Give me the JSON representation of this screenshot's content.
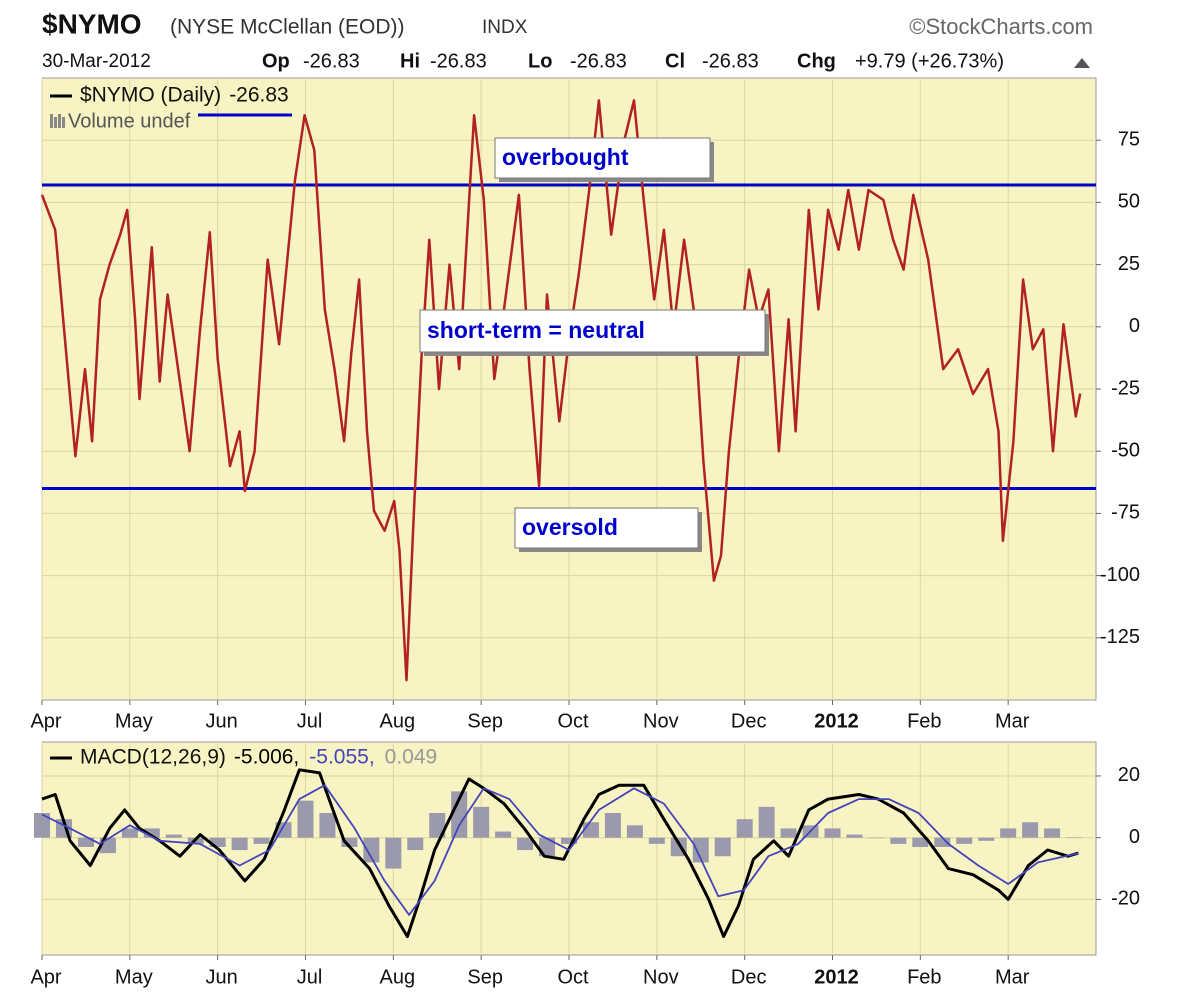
{
  "header": {
    "symbol": "$NYMO",
    "name": "(NYSE McClellan (EOD))",
    "exchange": "INDX",
    "source": "©StockCharts.com",
    "date": "30-Mar-2012",
    "open_label": "Op",
    "open": -26.83,
    "high_label": "Hi",
    "high": -26.83,
    "low_label": "Lo",
    "low": -26.83,
    "close_label": "Cl",
    "close": -26.83,
    "change_label": "Chg",
    "change": "+9.79 (+26.73%)"
  },
  "chart_data": [
    {
      "type": "line",
      "volume_legend": "Volume undef",
      "annotations": [
        "overbought",
        "short-term = neutral",
        "oversold"
      ],
      "hlines": [
        57,
        -65
      ],
      "hline_color": "#0000cc",
      "xlim": [
        0,
        12
      ],
      "ylim": [
        -150,
        100
      ],
      "grid": true,
      "xticks": [
        {
          "value": 0,
          "label": "Apr"
        },
        {
          "value": 1,
          "label": "May"
        },
        {
          "value": 2,
          "label": "Jun"
        },
        {
          "value": 3,
          "label": "Jul"
        },
        {
          "value": 4,
          "label": "Aug"
        },
        {
          "value": 5,
          "label": "Sep"
        },
        {
          "value": 6,
          "label": "Oct"
        },
        {
          "value": 7,
          "label": "Nov"
        },
        {
          "value": 8,
          "label": "Dec"
        },
        {
          "value": 9,
          "label": "2012"
        },
        {
          "value": 10,
          "label": "Feb"
        },
        {
          "value": 11,
          "label": "Mar"
        }
      ],
      "yticks": [
        75,
        50,
        25,
        0,
        -25,
        -50,
        -75,
        -100,
        -125
      ],
      "series": [
        {
          "name": "$NYMO (Daily)",
          "color": "#b22222",
          "x": [
            0,
            0.15,
            0.38,
            0.49,
            0.57,
            0.66,
            0.77,
            0.89,
            0.97,
            1.06,
            1.11,
            1.25,
            1.34,
            1.43,
            1.51,
            1.68,
            1.8,
            1.91,
            2,
            2.14,
            2.25,
            2.31,
            2.42,
            2.57,
            2.7,
            2.88,
            2.99,
            3.1,
            3.22,
            3.33,
            3.44,
            3.52,
            3.61,
            3.7,
            3.78,
            3.9,
            4.01,
            4.07,
            4.15,
            4.24,
            4.32,
            4.41,
            4.52,
            4.64,
            4.75,
            4.92,
            5.03,
            5.15,
            5.26,
            5.43,
            5.55,
            5.66,
            5.75,
            5.89,
            6,
            6.11,
            6.23,
            6.34,
            6.48,
            6.63,
            6.74,
            6.85,
            6.97,
            7.08,
            7.19,
            7.31,
            7.42,
            7.53,
            7.65,
            7.73,
            7.82,
            7.93,
            8.05,
            8.16,
            8.27,
            8.39,
            8.5,
            8.58,
            8.73,
            8.84,
            8.95,
            9.07,
            9.18,
            9.3,
            9.41,
            9.58,
            9.69,
            9.81,
            9.92,
            10.09,
            10.26,
            10.43,
            10.6,
            10.77,
            10.89,
            10.94,
            11.06,
            11.17,
            11.28,
            11.4,
            11.51,
            11.63,
            11.77,
            11.82
          ],
          "values": [
            53,
            39,
            -52,
            -17,
            -46,
            11,
            25,
            37,
            47,
            3,
            -29,
            32,
            -22,
            13,
            -7,
            -50,
            -1,
            38,
            -13,
            -56,
            -42,
            -66,
            -50,
            27,
            -7,
            59,
            85,
            71,
            7,
            -17,
            -46,
            -11,
            19,
            -42,
            -74,
            -82,
            -70,
            -90,
            -142,
            -70,
            -13,
            35,
            -25,
            25,
            -17,
            85,
            51,
            -21,
            7,
            53,
            -17,
            -64,
            13,
            -38,
            -5,
            21,
            55,
            91,
            37,
            75,
            91,
            51,
            11,
            39,
            -1,
            35,
            7,
            -54,
            -102,
            -92,
            -50,
            -13,
            23,
            3,
            15,
            -50,
            3,
            -42,
            47,
            7,
            47,
            31,
            55,
            31,
            55,
            51,
            35,
            23,
            53,
            27,
            -17,
            -9,
            -27,
            -17,
            -42,
            -86,
            -46,
            19,
            -9,
            -1,
            -50,
            1,
            -36,
            -26.83
          ]
        }
      ]
    },
    {
      "type": "macd",
      "legend": "MACD(12,26,9)",
      "legend_values": [
        "-5.006,",
        "-5.055,",
        "0.049"
      ],
      "xlim": [
        0,
        12
      ],
      "ylim": [
        -38,
        31
      ],
      "grid": true,
      "xticks": [
        {
          "value": 0,
          "label": "Apr"
        },
        {
          "value": 1,
          "label": "May"
        },
        {
          "value": 2,
          "label": "Jun"
        },
        {
          "value": 3,
          "label": "Jul"
        },
        {
          "value": 4,
          "label": "Aug"
        },
        {
          "value": 5,
          "label": "Sep"
        },
        {
          "value": 6,
          "label": "Oct"
        },
        {
          "value": 7,
          "label": "Nov"
        },
        {
          "value": 8,
          "label": "Dec"
        },
        {
          "value": 9,
          "label": "2012"
        },
        {
          "value": 10,
          "label": "Feb"
        },
        {
          "value": 11,
          "label": "Mar"
        }
      ],
      "yticks": [
        20,
        0,
        -20
      ],
      "series": [
        {
          "name": "MACD",
          "kind": "line",
          "color": "#000000",
          "x": [
            0,
            0.15,
            0.32,
            0.55,
            0.77,
            0.94,
            1.11,
            1.34,
            1.57,
            1.8,
            2.02,
            2.31,
            2.53,
            2.76,
            2.93,
            3.16,
            3.44,
            3.73,
            3.95,
            4.16,
            4.3,
            4.47,
            4.69,
            4.86,
            5.03,
            5.26,
            5.49,
            5.72,
            5.94,
            6.17,
            6.34,
            6.57,
            6.85,
            7.08,
            7.36,
            7.59,
            7.76,
            7.93,
            8.1,
            8.33,
            8.5,
            8.73,
            8.95,
            9.3,
            9.52,
            9.81,
            10.09,
            10.32,
            10.6,
            10.89,
            11,
            11.23,
            11.45,
            11.68,
            11.8
          ],
          "values": [
            12.5,
            14,
            -1,
            -9,
            3,
            9,
            3,
            -1,
            -6,
            1,
            -4,
            -14,
            -7,
            9,
            22,
            21,
            -1,
            -10,
            -22,
            -32,
            -20,
            -4,
            9,
            19,
            16,
            11,
            3,
            -6,
            -7,
            6,
            14,
            17,
            17,
            6,
            -7,
            -20,
            -32,
            -22,
            -7,
            -1,
            -6,
            9,
            12.5,
            14,
            12.5,
            8,
            -1,
            -10,
            -12,
            -17,
            -20,
            -9,
            -4,
            -6,
            -5.006
          ]
        },
        {
          "name": "Signal",
          "kind": "line",
          "color": "#4444bb",
          "x": [
            0,
            0.32,
            0.66,
            1,
            1.34,
            1.8,
            2.25,
            2.59,
            2.93,
            3.22,
            3.56,
            3.9,
            4.18,
            4.47,
            4.75,
            5.03,
            5.32,
            5.66,
            6,
            6.34,
            6.74,
            7.08,
            7.42,
            7.7,
            7.99,
            8.27,
            8.61,
            8.95,
            9.3,
            9.64,
            9.98,
            10.32,
            10.66,
            11,
            11.34,
            11.8
          ],
          "values": [
            7.5,
            3,
            -2,
            4,
            -1,
            -2,
            -9,
            -4,
            12.5,
            17,
            3,
            -14,
            -25,
            -14,
            4,
            16,
            12.5,
            1,
            -4,
            9,
            16,
            11,
            -2,
            -19,
            -17,
            -6,
            -2,
            8,
            12.5,
            12.5,
            8,
            -2,
            -9,
            -15,
            -8,
            -5.055
          ]
        },
        {
          "name": "Histogram",
          "kind": "bar",
          "color": "#9a9aac",
          "x": [
            0,
            0.25,
            0.5,
            0.75,
            1,
            1.25,
            1.5,
            1.75,
            2,
            2.25,
            2.5,
            2.75,
            3,
            3.25,
            3.5,
            3.75,
            4,
            4.25,
            4.5,
            4.75,
            5,
            5.25,
            5.5,
            5.75,
            6,
            6.25,
            6.5,
            6.75,
            7,
            7.25,
            7.5,
            7.75,
            8,
            8.25,
            8.5,
            8.75,
            9,
            9.25,
            9.5,
            9.75,
            10,
            10.25,
            10.5,
            10.75,
            11,
            11.25,
            11.5,
            11.75
          ],
          "values": [
            8,
            6,
            -3,
            -5,
            3,
            3,
            1,
            -2,
            -3,
            -4,
            -2,
            5,
            12,
            8,
            -3,
            -8,
            -10,
            -4,
            8,
            15,
            10,
            2,
            -4,
            -6,
            -2,
            5,
            8,
            4,
            -2,
            -6,
            -8,
            -6,
            6,
            10,
            3,
            4,
            3,
            1,
            0,
            -2,
            -3,
            -3,
            -2,
            -1,
            3,
            5,
            3,
            0.049
          ]
        }
      ]
    }
  ]
}
